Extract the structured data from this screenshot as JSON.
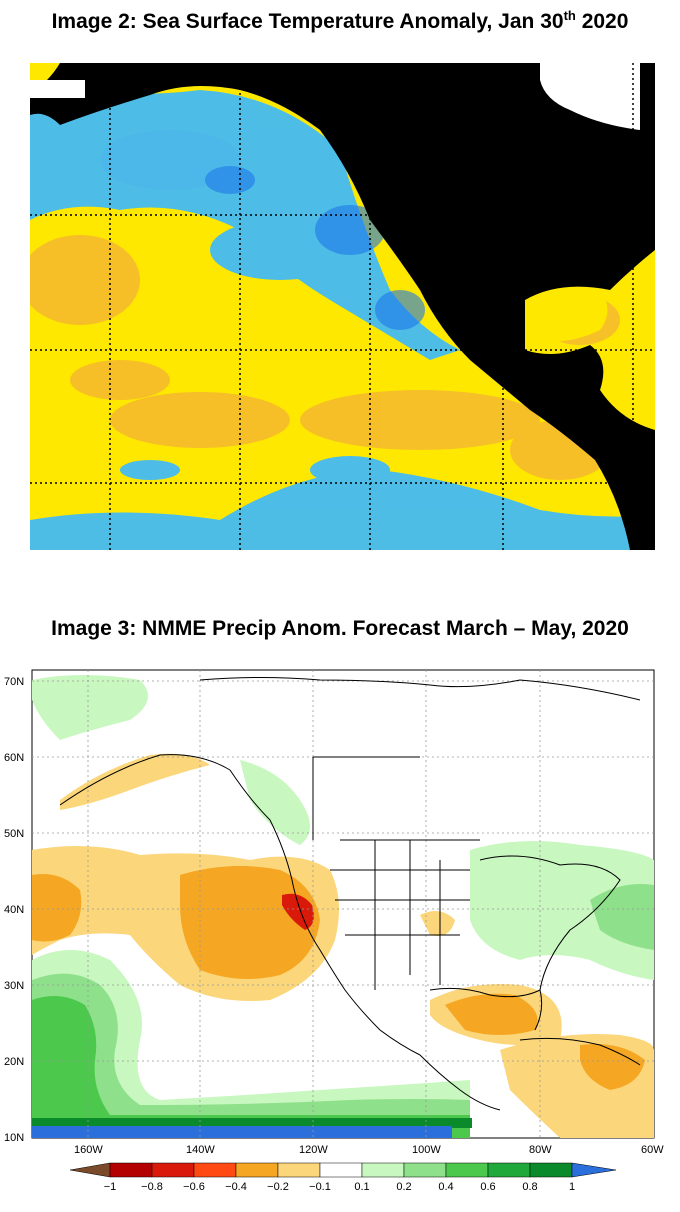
{
  "image2": {
    "title_main": "Image 2: Sea Surface Temperature Anomaly, Jan 30",
    "title_sup": "th",
    "title_end": " 2020"
  },
  "image3": {
    "title": "Image 3: NMME Precip Anom. Forecast March – May, 2020",
    "lat_labels": [
      "70N",
      "60N",
      "50N",
      "40N",
      "30N",
      "20N",
      "10N"
    ],
    "lon_labels": [
      "160W",
      "140W",
      "120W",
      "100W",
      "80W",
      "60W"
    ],
    "colorbar": {
      "labels": [
        "−1",
        "−0.8",
        "−0.6",
        "−0.4",
        "−0.2",
        "−0.1",
        "0.1",
        "0.2",
        "0.4",
        "0.6",
        "0.8",
        "1"
      ],
      "colors": [
        "#7a4a2a",
        "#b30000",
        "#d91a0a",
        "#ff4a14",
        "#f5a623",
        "#fbd67a",
        "#ffffff",
        "#c8f7c0",
        "#8ee08a",
        "#4cc94c",
        "#20a83a",
        "#0a8a2a",
        "#2a6fdb"
      ]
    },
    "colors": {
      "ocean_sst_warm": "#ffe800",
      "ocean_sst_orange": "#f5b830",
      "ocean_sst_cool": "#3ab8ff",
      "land": "#000000"
    }
  }
}
